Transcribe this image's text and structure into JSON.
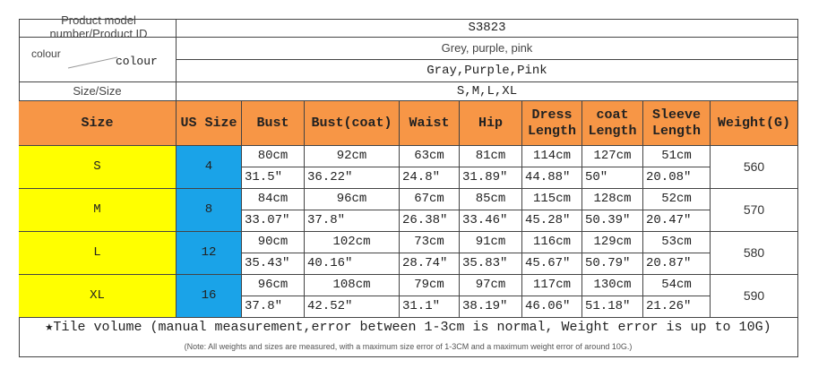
{
  "product_id": {
    "label": "Product model number/Product ID",
    "value": "S3823"
  },
  "colour": {
    "label_left": "colour",
    "label_right": "colour",
    "values": [
      "Grey, purple, pink",
      "Gray,Purple,Pink"
    ]
  },
  "size_row": {
    "label": "Size/Size",
    "value": "S,M,L,XL"
  },
  "table": {
    "header": [
      "Size",
      "US Size",
      "Bust",
      "Bust(coat)",
      "Waist",
      "Hip",
      "Dress Length",
      "coat Length",
      "Sleeve Length",
      "Weight(G)"
    ],
    "rows": [
      {
        "size": "S",
        "us_size": 4,
        "cm": [
          "80cm",
          "92cm",
          "63cm",
          "81cm",
          "114cm",
          "127cm",
          "51cm"
        ],
        "inch": [
          "31.5″",
          "36.22″",
          "24.8″",
          "31.89″",
          "44.88″",
          "50″",
          "20.08″"
        ],
        "weight": 560
      },
      {
        "size": "M",
        "us_size": 8,
        "cm": [
          "84cm",
          "96cm",
          "67cm",
          "85cm",
          "115cm",
          "128cm",
          "52cm"
        ],
        "inch": [
          "33.07″",
          "37.8″",
          "26.38″",
          "33.46″",
          "45.28″",
          "50.39″",
          "20.47″"
        ],
        "weight": 570
      },
      {
        "size": "L",
        "us_size": 12,
        "cm": [
          "90cm",
          "102cm",
          "73cm",
          "91cm",
          "116cm",
          "129cm",
          "53cm"
        ],
        "inch": [
          "35.43″",
          "40.16″",
          "28.74″",
          "35.83″",
          "45.67″",
          "50.79″",
          "20.87″"
        ],
        "weight": 580
      },
      {
        "size": "XL",
        "us_size": 16,
        "cm": [
          "96cm",
          "108cm",
          "79cm",
          "97cm",
          "117cm",
          "130cm",
          "54cm"
        ],
        "inch": [
          "37.8″",
          "42.52″",
          "31.1″",
          "38.19″",
          "46.06″",
          "51.18″",
          "21.26″"
        ],
        "weight": 590
      }
    ]
  },
  "footer": {
    "note": "★Tile volume (manual measurement,error between 1-3cm is normal, Weight error is up to 10G)",
    "small_note": "(Note: All weights and sizes are measured, with a maximum size error of 1-3CM and a maximum weight error of around 10G.)"
  }
}
